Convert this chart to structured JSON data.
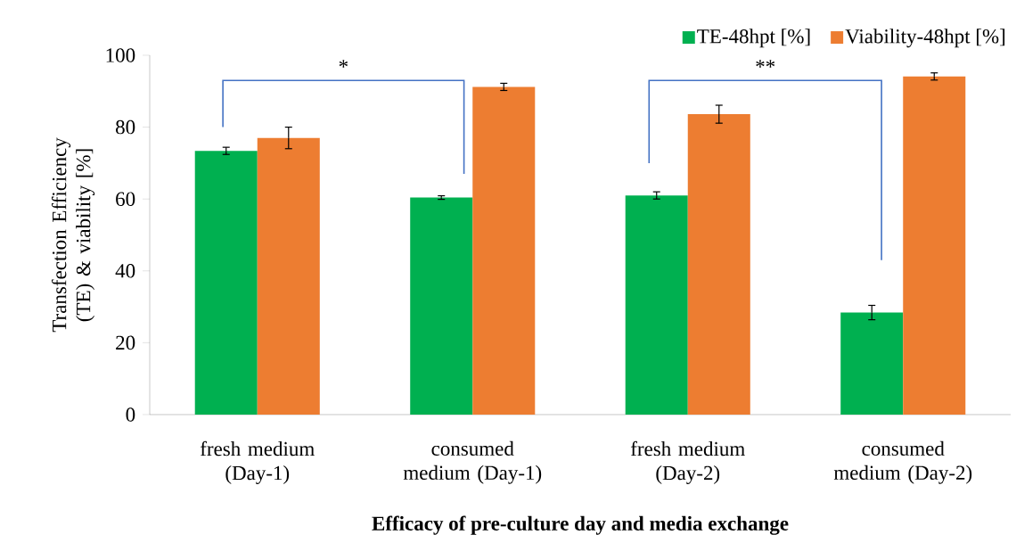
{
  "chart_data": {
    "type": "bar",
    "xlabel": "Efficacy of pre-culture day and media exchange",
    "ylabel": "Transfection Efficiency (TE) & viability [%]",
    "categories": [
      "fresh medium (Day-1)",
      "consumed medium (Day-1)",
      "fresh medium (Day-2)",
      "consumed medium (Day-2)"
    ],
    "series": [
      {
        "name": "TE-48hpt [%]",
        "color": "#00b050",
        "values": [
          73.4,
          60.4,
          61,
          28.4
        ],
        "errors": [
          1,
          0.5,
          1,
          2
        ]
      },
      {
        "name": "Viability-48hpt [%]",
        "color": "#ed7d31",
        "values": [
          77,
          91.2,
          83.6,
          94.1
        ],
        "errors": [
          3,
          1,
          2.5,
          1
        ]
      }
    ],
    "ylim": [
      0,
      100
    ],
    "yticks": [
      0,
      20,
      40,
      60,
      80,
      100
    ],
    "annotations": [
      "*",
      "**"
    ],
    "legend": "top right",
    "grid": false
  }
}
